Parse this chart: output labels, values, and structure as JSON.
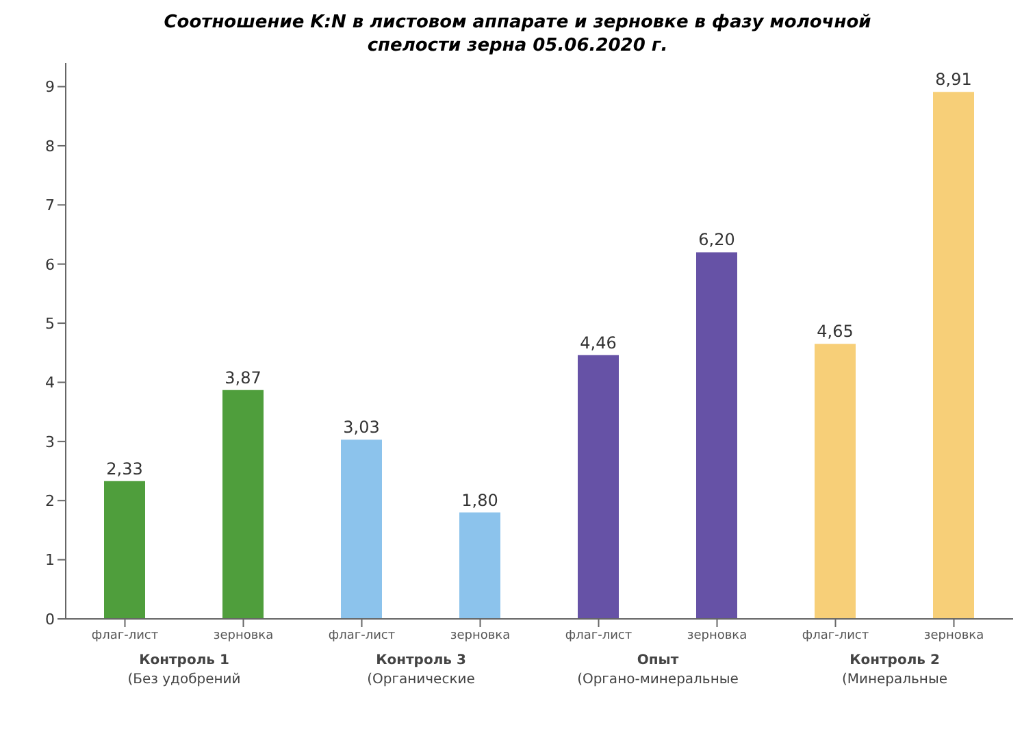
{
  "chart_data": {
    "type": "bar",
    "title": "Соотношение K:N в листовом аппарате и зерновке в фазу молочной спелости зерна 05.06.2020 г.",
    "categories": [
      "флаг-лист",
      "зерновка",
      "флаг-лист",
      "зерновка",
      "флаг-лист",
      "зерновка",
      "флаг-лист",
      "зерновка"
    ],
    "values": [
      2.33,
      3.87,
      3.03,
      1.8,
      4.46,
      6.2,
      4.65,
      8.91
    ],
    "colors": [
      "#4f9e3c",
      "#4f9e3c",
      "#8cc3ec",
      "#8cc3ec",
      "#6652a6",
      "#6652a6",
      "#f7cf78",
      "#f7cf78"
    ],
    "value_labels": [
      "2,33",
      "3,87",
      "3,03",
      "1,80",
      "4,46",
      "6,20",
      "4,65",
      "8,91"
    ],
    "ylim": [
      0,
      9.4
    ],
    "yticks": [
      0,
      1,
      2,
      3,
      4,
      5,
      6,
      7,
      8,
      9
    ],
    "grid": false,
    "annotations": [
      "Контроль 1",
      "(Без удобрений",
      "Контроль 3",
      "(Органические",
      "Опыт",
      "(Органо-минеральные",
      "Контроль 2",
      "(Минеральные"
    ]
  }
}
